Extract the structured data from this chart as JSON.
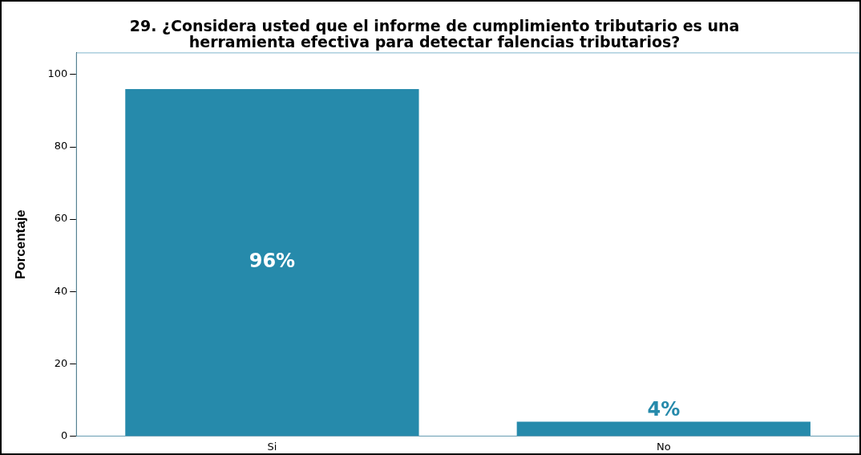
{
  "chart_data": {
    "type": "bar",
    "title": [
      "29. ¿Considera usted que el informe de cumplimiento tributario es una",
      "herramienta efectiva para detectar falencias tributarios?"
    ],
    "ylabel": "Porcentaje",
    "categories": [
      "Si",
      "No"
    ],
    "values": [
      96,
      4
    ],
    "value_labels": [
      "96%",
      "4%"
    ],
    "color": "#268aab",
    "ylim": [
      0,
      106
    ],
    "yticks": [
      0,
      20,
      40,
      60,
      80,
      100
    ],
    "grid": false,
    "legend": false
  }
}
